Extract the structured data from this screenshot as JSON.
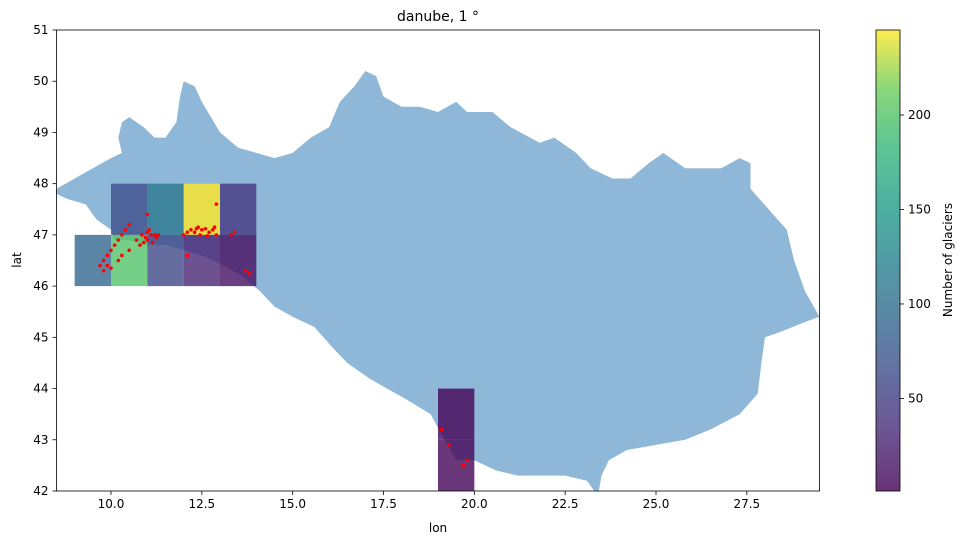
{
  "chart_data": {
    "type": "heatmap",
    "title": "danube, 1 °",
    "xlabel": "lon",
    "ylabel": "lat",
    "xlim": [
      8.5,
      29.5
    ],
    "ylim": [
      42,
      51
    ],
    "xticks": [
      "10.0",
      "12.5",
      "15.0",
      "17.5",
      "20.0",
      "22.5",
      "25.0",
      "27.5"
    ],
    "xtick_values": [
      10,
      12.5,
      15,
      17.5,
      20,
      22.5,
      25,
      27.5
    ],
    "yticks": [
      "42",
      "43",
      "44",
      "45",
      "46",
      "47",
      "48",
      "49",
      "50",
      "51"
    ],
    "ytick_values": [
      42,
      43,
      44,
      45,
      46,
      47,
      48,
      49,
      50,
      51
    ],
    "grid": false,
    "basin_color": "#8fb8d8",
    "glacier_color": "#ff0000",
    "colormap": "viridis",
    "colorbar": {
      "label": "Number of glaciers",
      "range": [
        1,
        245
      ],
      "ticks": [
        "50",
        "100",
        "150",
        "200"
      ],
      "tick_values": [
        50,
        100,
        150,
        200
      ]
    },
    "cells": [
      {
        "lon": 10,
        "lat": 47,
        "count": 65
      },
      {
        "lon": 11,
        "lat": 47,
        "count": 110
      },
      {
        "lon": 12,
        "lat": 47,
        "count": 245
      },
      {
        "lon": 13,
        "lat": 47,
        "count": 45
      },
      {
        "lon": 9,
        "lat": 46,
        "count": 90
      },
      {
        "lon": 10,
        "lat": 46,
        "count": 200
      },
      {
        "lon": 11,
        "lat": 46,
        "count": 60
      },
      {
        "lon": 12,
        "lat": 46,
        "count": 30
      },
      {
        "lon": 13,
        "lat": 46,
        "count": 12
      },
      {
        "lon": 19,
        "lat": 43,
        "count": 3
      },
      {
        "lon": 19,
        "lat": 42,
        "count": 5
      }
    ],
    "basin_outline": [
      [
        8.5,
        47.9
      ],
      [
        9.0,
        48.1
      ],
      [
        9.5,
        48.3
      ],
      [
        10.0,
        48.5
      ],
      [
        10.3,
        48.6
      ],
      [
        10.2,
        48.9
      ],
      [
        10.3,
        49.2
      ],
      [
        10.5,
        49.3
      ],
      [
        10.9,
        49.1
      ],
      [
        11.2,
        48.9
      ],
      [
        11.5,
        48.9
      ],
      [
        11.8,
        49.2
      ],
      [
        11.9,
        49.7
      ],
      [
        12.0,
        50.0
      ],
      [
        12.3,
        49.9
      ],
      [
        12.5,
        49.6
      ],
      [
        13.0,
        49.0
      ],
      [
        13.5,
        48.7
      ],
      [
        14.0,
        48.6
      ],
      [
        14.5,
        48.5
      ],
      [
        15.0,
        48.6
      ],
      [
        15.5,
        48.9
      ],
      [
        16.0,
        49.1
      ],
      [
        16.3,
        49.6
      ],
      [
        16.7,
        49.9
      ],
      [
        17.0,
        50.2
      ],
      [
        17.3,
        50.1
      ],
      [
        17.5,
        49.7
      ],
      [
        18.0,
        49.5
      ],
      [
        18.5,
        49.5
      ],
      [
        19.0,
        49.4
      ],
      [
        19.5,
        49.6
      ],
      [
        19.8,
        49.4
      ],
      [
        20.5,
        49.4
      ],
      [
        21.0,
        49.1
      ],
      [
        21.8,
        48.8
      ],
      [
        22.2,
        48.9
      ],
      [
        22.8,
        48.6
      ],
      [
        23.2,
        48.3
      ],
      [
        23.8,
        48.1
      ],
      [
        24.3,
        48.1
      ],
      [
        24.8,
        48.4
      ],
      [
        25.2,
        48.6
      ],
      [
        25.8,
        48.3
      ],
      [
        26.3,
        48.3
      ],
      [
        26.8,
        48.3
      ],
      [
        27.3,
        48.5
      ],
      [
        27.6,
        48.4
      ],
      [
        27.6,
        47.9
      ],
      [
        28.1,
        47.5
      ],
      [
        28.6,
        47.1
      ],
      [
        28.8,
        46.5
      ],
      [
        29.1,
        45.9
      ],
      [
        29.5,
        45.4
      ],
      [
        29.1,
        45.3
      ],
      [
        28.4,
        45.1
      ],
      [
        28.0,
        45.0
      ],
      [
        27.9,
        44.5
      ],
      [
        27.8,
        43.9
      ],
      [
        27.3,
        43.5
      ],
      [
        26.5,
        43.2
      ],
      [
        25.8,
        43.0
      ],
      [
        25.0,
        42.9
      ],
      [
        24.2,
        42.8
      ],
      [
        23.7,
        42.6
      ],
      [
        23.5,
        42.3
      ],
      [
        23.4,
        41.9
      ],
      [
        23.1,
        42.2
      ],
      [
        22.5,
        42.3
      ],
      [
        21.9,
        42.3
      ],
      [
        21.2,
        42.3
      ],
      [
        20.6,
        42.4
      ],
      [
        20.0,
        42.6
      ],
      [
        19.5,
        42.6
      ],
      [
        19.1,
        43.1
      ],
      [
        18.8,
        43.5
      ],
      [
        18.1,
        43.8
      ],
      [
        17.6,
        44.0
      ],
      [
        17.1,
        44.2
      ],
      [
        16.5,
        44.5
      ],
      [
        16.1,
        44.8
      ],
      [
        15.6,
        45.2
      ],
      [
        15.0,
        45.4
      ],
      [
        14.5,
        45.6
      ],
      [
        14.1,
        45.9
      ],
      [
        13.6,
        46.2
      ],
      [
        13.1,
        46.4
      ],
      [
        12.5,
        46.6
      ],
      [
        12.0,
        46.7
      ],
      [
        11.5,
        46.8
      ],
      [
        11.0,
        46.8
      ],
      [
        10.5,
        46.9
      ],
      [
        10.1,
        46.9
      ],
      [
        10.0,
        47.1
      ],
      [
        9.6,
        47.3
      ],
      [
        9.3,
        47.6
      ],
      [
        8.8,
        47.7
      ],
      [
        8.5,
        47.8
      ]
    ],
    "glaciers": [
      [
        10.3,
        47.0
      ],
      [
        10.4,
        47.1
      ],
      [
        10.5,
        47.2
      ],
      [
        10.2,
        46.9
      ],
      [
        10.1,
        46.8
      ],
      [
        10.0,
        46.7
      ],
      [
        9.9,
        46.6
      ],
      [
        9.8,
        46.5
      ],
      [
        9.9,
        46.4
      ],
      [
        9.7,
        46.4
      ],
      [
        9.8,
        46.3
      ],
      [
        10.0,
        46.35
      ],
      [
        10.2,
        46.5
      ],
      [
        10.3,
        46.6
      ],
      [
        10.5,
        46.7
      ],
      [
        10.7,
        46.9
      ],
      [
        10.8,
        46.8
      ],
      [
        10.9,
        46.85
      ],
      [
        11.0,
        46.9
      ],
      [
        11.1,
        47.0
      ],
      [
        11.2,
        47.0
      ],
      [
        11.0,
        47.05
      ],
      [
        10.95,
        46.95
      ],
      [
        11.15,
        46.85
      ],
      [
        11.3,
        47.0
      ],
      [
        11.05,
        47.1
      ],
      [
        10.85,
        47.0
      ],
      [
        11.25,
        46.95
      ],
      [
        11.0,
        47.4
      ],
      [
        12.0,
        47.0
      ],
      [
        12.2,
        47.1
      ],
      [
        12.3,
        47.05
      ],
      [
        12.4,
        47.15
      ],
      [
        12.5,
        47.1
      ],
      [
        12.6,
        47.12
      ],
      [
        12.7,
        47.05
      ],
      [
        12.8,
        47.1
      ],
      [
        12.9,
        47.0
      ],
      [
        12.1,
        47.05
      ],
      [
        12.45,
        47.0
      ],
      [
        12.65,
        46.98
      ],
      [
        12.35,
        47.12
      ],
      [
        12.85,
        47.15
      ],
      [
        12.9,
        47.6
      ],
      [
        13.3,
        47.0
      ],
      [
        13.4,
        47.05
      ],
      [
        12.1,
        46.6
      ],
      [
        13.7,
        46.3
      ],
      [
        13.8,
        46.25
      ],
      [
        19.1,
        43.2
      ],
      [
        19.3,
        42.9
      ],
      [
        19.7,
        42.5
      ],
      [
        19.8,
        42.6
      ]
    ]
  }
}
